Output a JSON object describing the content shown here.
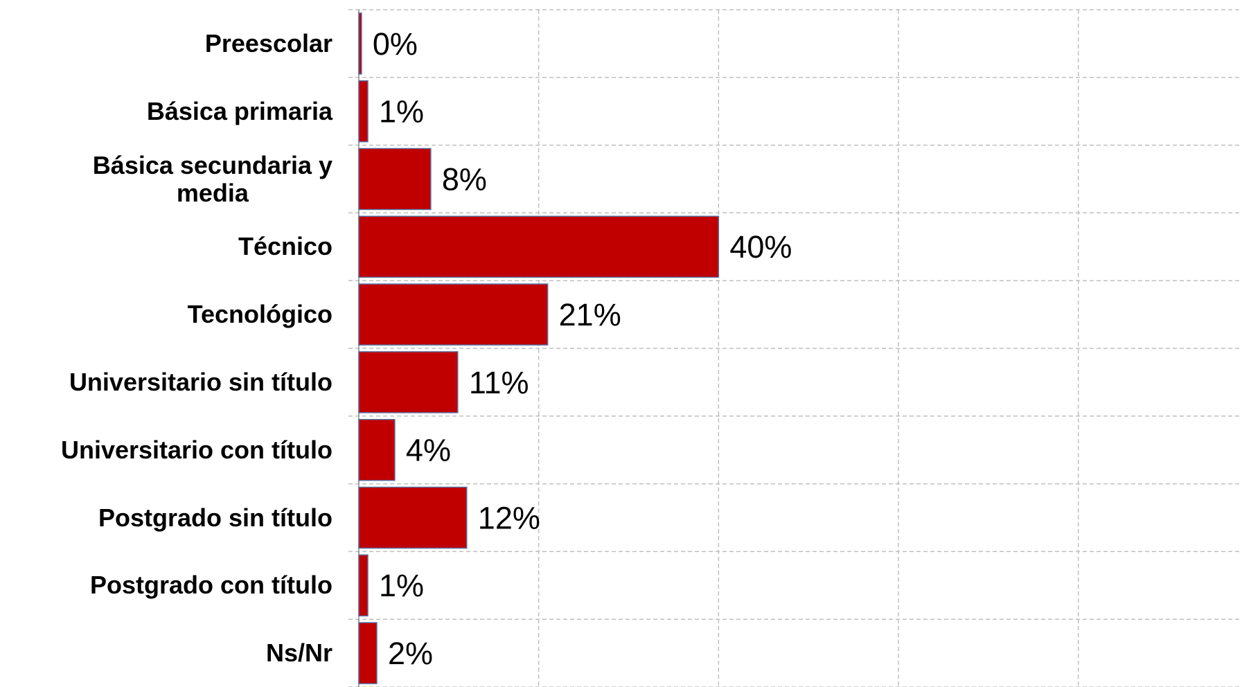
{
  "chart_data": {
    "type": "bar",
    "orientation": "horizontal",
    "categories": [
      "Preescolar",
      "Básica primaria",
      "Básica secundaria y\nmedia",
      "Técnico",
      "Tecnológico",
      "Universitario sin título",
      "Universitario con título",
      "Postgrado sin título",
      "Postgrado con título",
      "Ns/Nr"
    ],
    "values": [
      0.3,
      1,
      8,
      40,
      21,
      11,
      4,
      12,
      1,
      2
    ],
    "value_labels": [
      "0%",
      "1%",
      "8%",
      "40%",
      "21%",
      "11%",
      "4%",
      "12%",
      "1%",
      "2%"
    ],
    "color": "#c00000",
    "xlim": [
      0,
      98.2
    ],
    "xticks": [
      0,
      20,
      40,
      60,
      80
    ],
    "grid": true
  }
}
